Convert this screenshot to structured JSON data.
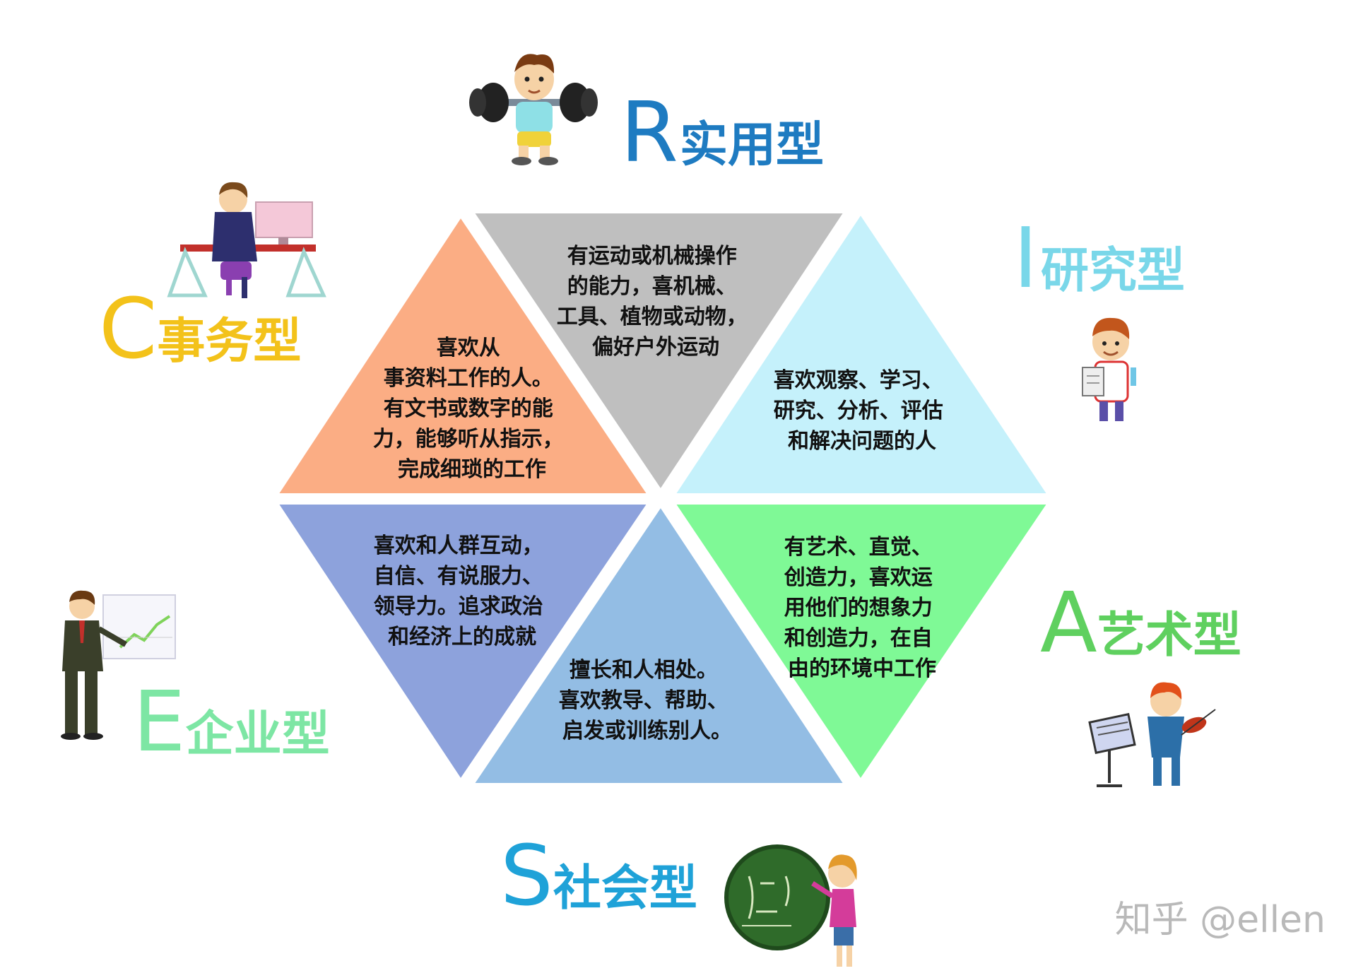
{
  "segments": {
    "R": {
      "letter": "R",
      "name": "实用型",
      "color": "#bfbfbf",
      "label_color": "#1e7bc1",
      "description": [
        "有运动或机械操作",
        "的能力，喜机械、",
        "工具、植物或动物，",
        "偏好户外运动"
      ]
    },
    "I": {
      "letter": "I",
      "name": "研究型",
      "color": "#c5f1fb",
      "label_color": "#79d7e9",
      "description": [
        "喜欢观察、学习、",
        "研究、分析、评估",
        "和解决问题的人"
      ]
    },
    "A": {
      "letter": "A",
      "name": "艺术型",
      "color": "#7ff996",
      "label_color": "#5fd05f",
      "description": [
        "有艺术、直觉、",
        "创造力，喜欢运",
        "用他们的想象力",
        "和创造力，在自",
        "由的环境中工作"
      ]
    },
    "S": {
      "letter": "S",
      "name": "社会型",
      "color": "#93bde4",
      "label_color": "#1fa2d8",
      "description": [
        "擅长和人相处。",
        "喜欢教导、帮助、",
        "启发或训练别人。"
      ]
    },
    "E": {
      "letter": "E",
      "name": "企业型",
      "color": "#8da2dc",
      "label_color": "#7de6a4",
      "description": [
        "喜欢和人群互动，",
        "自信、有说服力、",
        "领导力。追求政治",
        "和经济上的成就"
      ]
    },
    "C": {
      "letter": "C",
      "name": "事务型",
      "color": "#fbad84",
      "label_color": "#f3c21a",
      "description": [
        "喜欢从",
        "事资料工作的人。",
        "有文书或数字的能",
        "力，能够听从指示，",
        "完成细琐的工作"
      ]
    }
  },
  "watermark": "知乎 @ellen"
}
